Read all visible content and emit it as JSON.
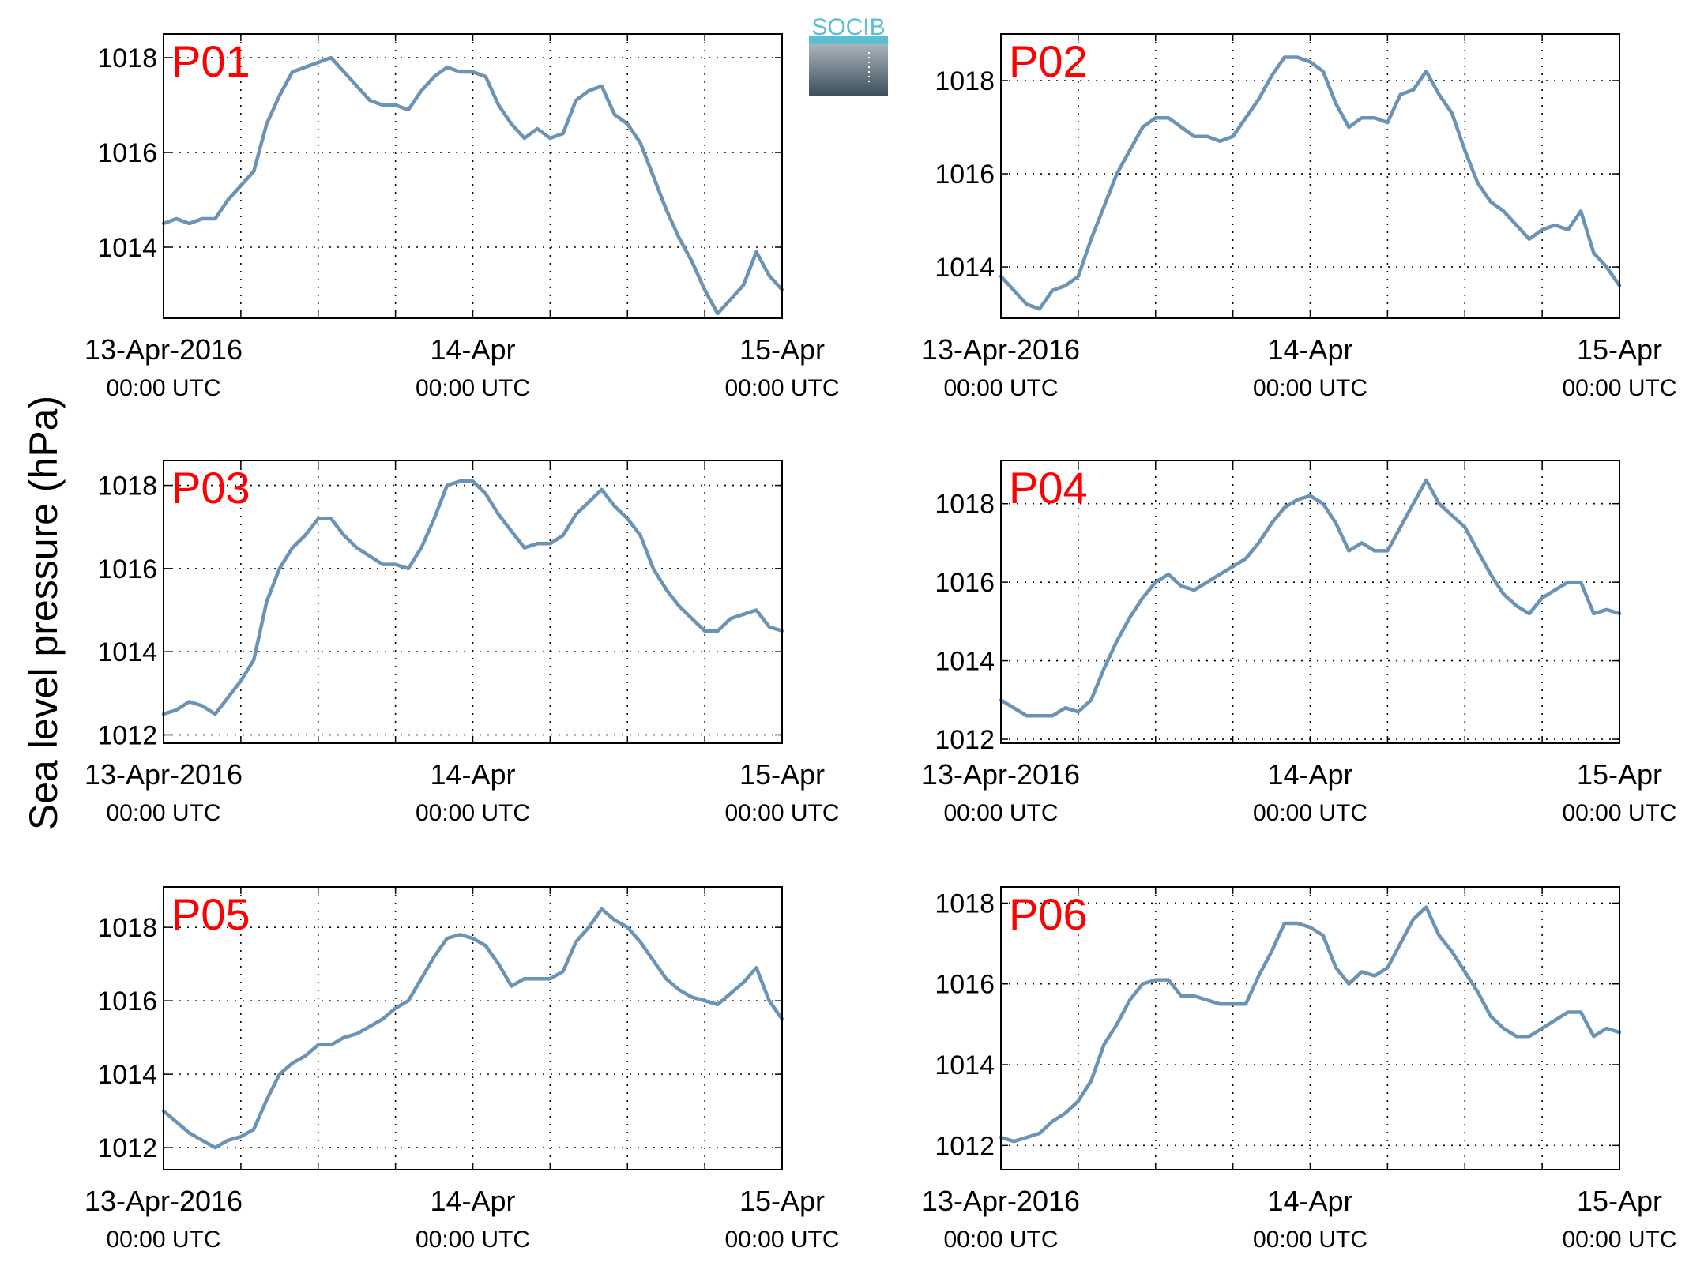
{
  "figure": {
    "ylabel": "Sea level pressure (hPa)",
    "logo_text": "SOCIB",
    "colors": {
      "line": "#6b93b5",
      "panel_label": "#ff0000",
      "axes": "#000000",
      "logo_accent": "#5bbfd4",
      "logo_dark": "#3c4f5c"
    }
  },
  "x_ticks": [
    {
      "line1": "13-Apr-2016",
      "line2": "00:00 UTC"
    },
    {
      "line1": "14-Apr",
      "line2": "00:00 UTC"
    },
    {
      "line1": "15-Apr",
      "line2": "00:00 UTC"
    }
  ],
  "chart_data": [
    {
      "type": "line",
      "label": "P01",
      "grid": true,
      "xlim": [
        0,
        48
      ],
      "ylim": [
        1012.5,
        1018.5
      ],
      "yticks": [
        1014,
        1016,
        1018
      ],
      "x": [
        0,
        1,
        2,
        3,
        4,
        5,
        6,
        7,
        8,
        9,
        10,
        11,
        12,
        13,
        14,
        15,
        16,
        17,
        18,
        19,
        20,
        21,
        22,
        23,
        24,
        25,
        26,
        27,
        28,
        29,
        30,
        31,
        32,
        33,
        34,
        35,
        36,
        37,
        38,
        39,
        40,
        41,
        42,
        43,
        44,
        45,
        46,
        47,
        48
      ],
      "y": [
        1014.5,
        1014.6,
        1014.5,
        1014.6,
        1014.6,
        1015.0,
        1015.3,
        1015.6,
        1016.6,
        1017.2,
        1017.7,
        1017.8,
        1017.9,
        1018.0,
        1017.7,
        1017.4,
        1017.1,
        1017.0,
        1017.0,
        1016.9,
        1017.3,
        1017.6,
        1017.8,
        1017.7,
        1017.7,
        1017.6,
        1017.0,
        1016.6,
        1016.3,
        1016.5,
        1016.3,
        1016.4,
        1017.1,
        1017.3,
        1017.4,
        1016.8,
        1016.6,
        1016.2,
        1015.5,
        1014.8,
        1014.2,
        1013.7,
        1013.1,
        1012.6,
        1012.9,
        1013.2,
        1013.9,
        1013.4,
        1013.1
      ]
    },
    {
      "type": "line",
      "label": "P02",
      "grid": true,
      "xlim": [
        0,
        48
      ],
      "ylim": [
        1012.9,
        1019.0
      ],
      "yticks": [
        1014,
        1016,
        1018
      ],
      "x": [
        0,
        1,
        2,
        3,
        4,
        5,
        6,
        7,
        8,
        9,
        10,
        11,
        12,
        13,
        14,
        15,
        16,
        17,
        18,
        19,
        20,
        21,
        22,
        23,
        24,
        25,
        26,
        27,
        28,
        29,
        30,
        31,
        32,
        33,
        34,
        35,
        36,
        37,
        38,
        39,
        40,
        41,
        42,
        43,
        44,
        45,
        46,
        47,
        48
      ],
      "y": [
        1013.8,
        1013.5,
        1013.2,
        1013.1,
        1013.5,
        1013.6,
        1013.8,
        1014.6,
        1015.3,
        1016.0,
        1016.5,
        1017.0,
        1017.2,
        1017.2,
        1017.0,
        1016.8,
        1016.8,
        1016.7,
        1016.8,
        1017.2,
        1017.6,
        1018.1,
        1018.5,
        1018.5,
        1018.4,
        1018.2,
        1017.5,
        1017.0,
        1017.2,
        1017.2,
        1017.1,
        1017.7,
        1017.8,
        1018.2,
        1017.7,
        1017.3,
        1016.5,
        1015.8,
        1015.4,
        1015.2,
        1014.9,
        1014.6,
        1014.8,
        1014.9,
        1014.8,
        1015.2,
        1014.3,
        1014.0,
        1013.6
      ]
    },
    {
      "type": "line",
      "label": "P03",
      "grid": true,
      "xlim": [
        0,
        48
      ],
      "ylim": [
        1011.8,
        1018.6
      ],
      "yticks": [
        1012,
        1014,
        1016,
        1018
      ],
      "x": [
        0,
        1,
        2,
        3,
        4,
        5,
        6,
        7,
        8,
        9,
        10,
        11,
        12,
        13,
        14,
        15,
        16,
        17,
        18,
        19,
        20,
        21,
        22,
        23,
        24,
        25,
        26,
        27,
        28,
        29,
        30,
        31,
        32,
        33,
        34,
        35,
        36,
        37,
        38,
        39,
        40,
        41,
        42,
        43,
        44,
        45,
        46,
        47,
        48
      ],
      "y": [
        1012.5,
        1012.6,
        1012.8,
        1012.7,
        1012.5,
        1012.9,
        1013.3,
        1013.8,
        1015.2,
        1016.0,
        1016.5,
        1016.8,
        1017.2,
        1017.2,
        1016.8,
        1016.5,
        1016.3,
        1016.1,
        1016.1,
        1016.0,
        1016.5,
        1017.2,
        1018.0,
        1018.1,
        1018.1,
        1017.8,
        1017.3,
        1016.9,
        1016.5,
        1016.6,
        1016.6,
        1016.8,
        1017.3,
        1017.6,
        1017.9,
        1017.5,
        1017.2,
        1016.8,
        1016.0,
        1015.5,
        1015.1,
        1014.8,
        1014.5,
        1014.5,
        1014.8,
        1014.9,
        1015.0,
        1014.6,
        1014.5
      ]
    },
    {
      "type": "line",
      "label": "P04",
      "grid": true,
      "xlim": [
        0,
        48
      ],
      "ylim": [
        1011.9,
        1019.1
      ],
      "yticks": [
        1012,
        1014,
        1016,
        1018
      ],
      "x": [
        0,
        1,
        2,
        3,
        4,
        5,
        6,
        7,
        8,
        9,
        10,
        11,
        12,
        13,
        14,
        15,
        16,
        17,
        18,
        19,
        20,
        21,
        22,
        23,
        24,
        25,
        26,
        27,
        28,
        29,
        30,
        31,
        32,
        33,
        34,
        35,
        36,
        37,
        38,
        39,
        40,
        41,
        42,
        43,
        44,
        45,
        46,
        47,
        48
      ],
      "y": [
        1013.0,
        1012.8,
        1012.6,
        1012.6,
        1012.6,
        1012.8,
        1012.7,
        1013.0,
        1013.8,
        1014.5,
        1015.1,
        1015.6,
        1016.0,
        1016.2,
        1015.9,
        1015.8,
        1016.0,
        1016.2,
        1016.4,
        1016.6,
        1017.0,
        1017.5,
        1017.9,
        1018.1,
        1018.2,
        1018.0,
        1017.5,
        1016.8,
        1017.0,
        1016.8,
        1016.8,
        1017.4,
        1018.0,
        1018.6,
        1018.0,
        1017.7,
        1017.4,
        1016.8,
        1016.2,
        1015.7,
        1015.4,
        1015.2,
        1015.6,
        1015.8,
        1016.0,
        1016.0,
        1015.2,
        1015.3,
        1015.2
      ]
    },
    {
      "type": "line",
      "label": "P05",
      "grid": true,
      "xlim": [
        0,
        48
      ],
      "ylim": [
        1011.4,
        1019.1
      ],
      "yticks": [
        1012,
        1014,
        1016,
        1018
      ],
      "x": [
        0,
        1,
        2,
        3,
        4,
        5,
        6,
        7,
        8,
        9,
        10,
        11,
        12,
        13,
        14,
        15,
        16,
        17,
        18,
        19,
        20,
        21,
        22,
        23,
        24,
        25,
        26,
        27,
        28,
        29,
        30,
        31,
        32,
        33,
        34,
        35,
        36,
        37,
        38,
        39,
        40,
        41,
        42,
        43,
        44,
        45,
        46,
        47,
        48
      ],
      "y": [
        1013.0,
        1012.7,
        1012.4,
        1012.2,
        1012.0,
        1012.2,
        1012.3,
        1012.5,
        1013.3,
        1014.0,
        1014.3,
        1014.5,
        1014.8,
        1014.8,
        1015.0,
        1015.1,
        1015.3,
        1015.5,
        1015.8,
        1016.0,
        1016.6,
        1017.2,
        1017.7,
        1017.8,
        1017.7,
        1017.5,
        1017.0,
        1016.4,
        1016.6,
        1016.6,
        1016.6,
        1016.8,
        1017.6,
        1018.0,
        1018.5,
        1018.2,
        1018.0,
        1017.6,
        1017.1,
        1016.6,
        1016.3,
        1016.1,
        1016.0,
        1015.9,
        1016.2,
        1016.5,
        1016.9,
        1016.0,
        1015.5
      ]
    },
    {
      "type": "line",
      "label": "P06",
      "grid": true,
      "xlim": [
        0,
        48
      ],
      "ylim": [
        1011.4,
        1018.4
      ],
      "yticks": [
        1012,
        1014,
        1016,
        1018
      ],
      "x": [
        0,
        1,
        2,
        3,
        4,
        5,
        6,
        7,
        8,
        9,
        10,
        11,
        12,
        13,
        14,
        15,
        16,
        17,
        18,
        19,
        20,
        21,
        22,
        23,
        24,
        25,
        26,
        27,
        28,
        29,
        30,
        31,
        32,
        33,
        34,
        35,
        36,
        37,
        38,
        39,
        40,
        41,
        42,
        43,
        44,
        45,
        46,
        47,
        48
      ],
      "y": [
        1012.2,
        1012.1,
        1012.2,
        1012.3,
        1012.6,
        1012.8,
        1013.1,
        1013.6,
        1014.5,
        1015.0,
        1015.6,
        1016.0,
        1016.1,
        1016.1,
        1015.7,
        1015.7,
        1015.6,
        1015.5,
        1015.5,
        1015.5,
        1016.2,
        1016.8,
        1017.5,
        1017.5,
        1017.4,
        1017.2,
        1016.4,
        1016.0,
        1016.3,
        1016.2,
        1016.4,
        1017.0,
        1017.6,
        1017.9,
        1017.2,
        1016.8,
        1016.3,
        1015.8,
        1015.2,
        1014.9,
        1014.7,
        1014.7,
        1014.9,
        1015.1,
        1015.3,
        1015.3,
        1014.7,
        1014.9,
        1014.8
      ]
    }
  ]
}
